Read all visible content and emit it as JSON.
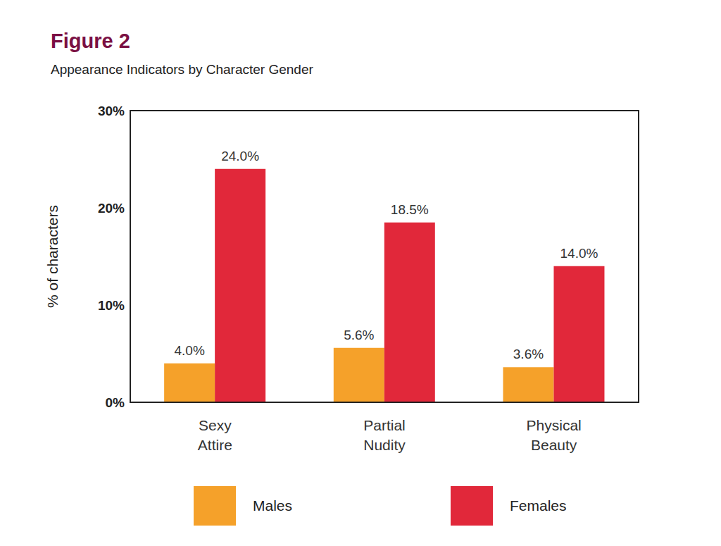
{
  "chart_data": {
    "type": "bar",
    "title": "Figure 2",
    "subtitle": "Appearance Indicators by Character Gender",
    "y_label": "% of characters",
    "categories": [
      "Sexy Attire",
      "Partial Nudity",
      "Physical Beauty"
    ],
    "series": [
      {
        "name": "Males",
        "color": "#f5a12a",
        "values": [
          4.0,
          5.6,
          3.6
        ],
        "value_labels": [
          "4.0%",
          "5.6%",
          "3.6%"
        ]
      },
      {
        "name": "Females",
        "color": "#e1283a",
        "values": [
          24.0,
          18.5,
          14.0
        ],
        "value_labels": [
          "24.0%",
          "18.5%",
          "14.0%"
        ]
      }
    ],
    "ylim": [
      0,
      30
    ],
    "yticks": [
      {
        "value": 0,
        "label": "0%"
      },
      {
        "value": 10,
        "label": "10%"
      },
      {
        "value": 20,
        "label": "20%"
      },
      {
        "value": 30,
        "label": "30%"
      }
    ],
    "grid": false,
    "legend": "bottom",
    "data_labels": true
  }
}
